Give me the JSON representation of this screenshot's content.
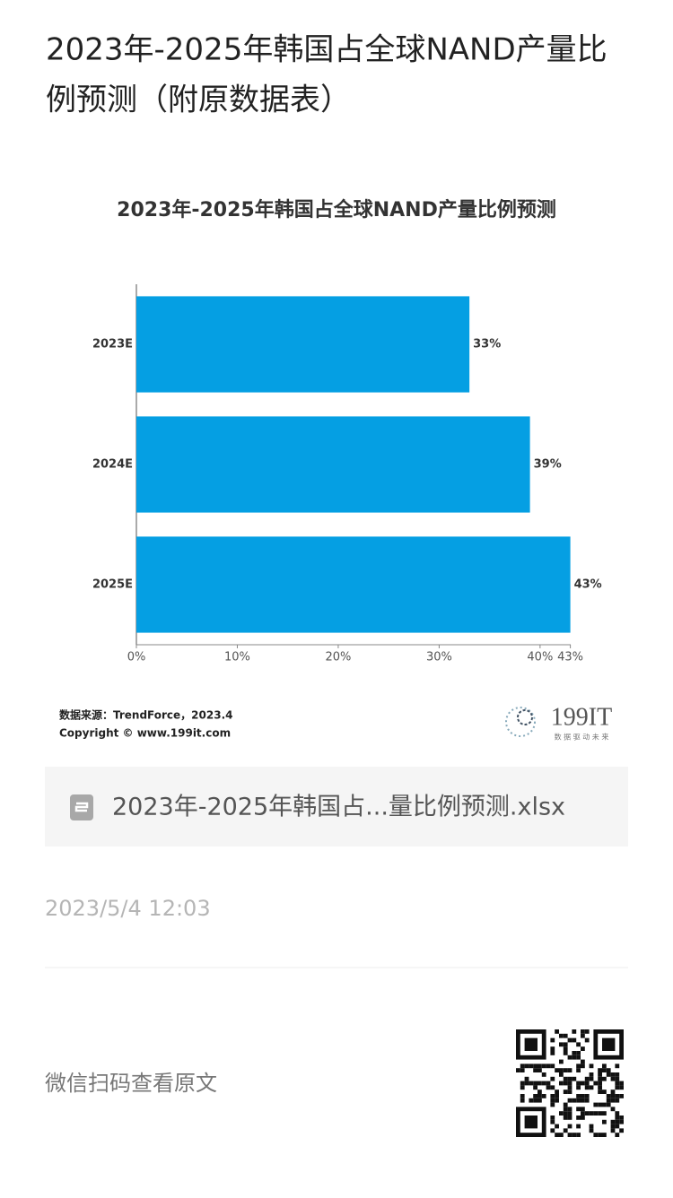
{
  "header": {
    "title_lines": [
      "2023年-2025年韩国占全球NAND产量比",
      "例预测（附原数据表）"
    ]
  },
  "chart_data": {
    "type": "hbar",
    "title": "2023年-2025年韩国占全球NAND产量比例预测",
    "categories": [
      "2023E",
      "2024E",
      "2025E"
    ],
    "values": [
      33,
      39,
      43
    ],
    "value_labels": [
      "33%",
      "39%",
      "43%"
    ],
    "color": "#059fe3",
    "xlim": [
      0,
      43
    ],
    "xticks": [
      {
        "value": 0,
        "label": "0%"
      },
      {
        "value": 10,
        "label": "10%"
      },
      {
        "value": 20,
        "label": "20%"
      },
      {
        "value": 30,
        "label": "30%"
      },
      {
        "value": 40,
        "label": "40%"
      },
      {
        "value": 43,
        "label": "43%"
      }
    ],
    "source": "数据来源：TrendForce，2023.4",
    "copyright": "Copyright © www.199it.com",
    "logo": "199IT",
    "logo_slogan": "数 据 驱 动 未 来"
  },
  "attachment": {
    "file_name": "2023年-2025年韩国占...量比例预测.xlsx"
  },
  "meta": {
    "date": "2023/5/4 12:03"
  },
  "footer": {
    "qr_hint": "微信扫码查看原文"
  }
}
